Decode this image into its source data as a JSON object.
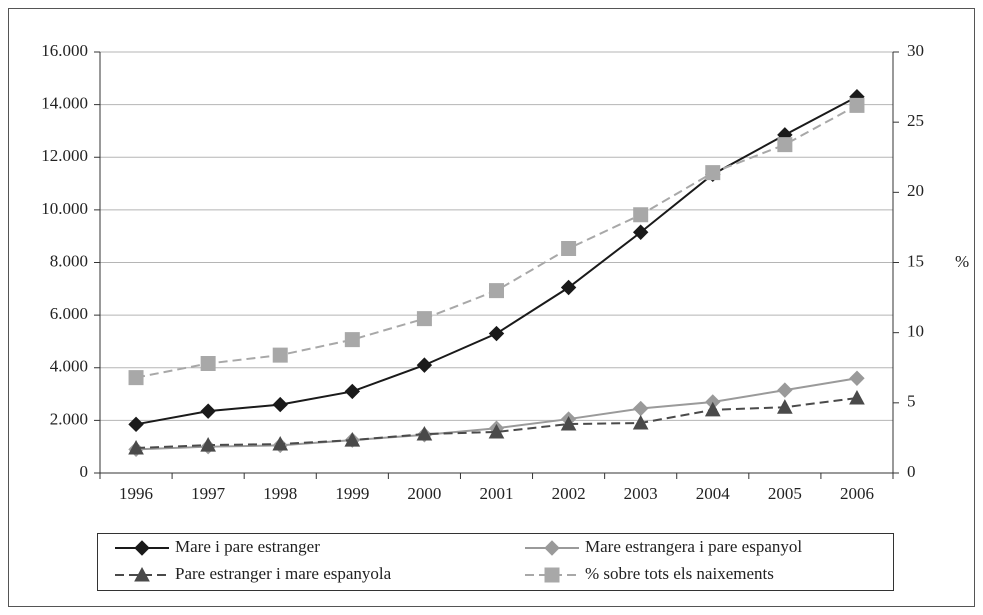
{
  "chart_data": {
    "type": "line",
    "categories": [
      "1996",
      "1997",
      "1998",
      "1999",
      "2000",
      "2001",
      "2002",
      "2003",
      "2004",
      "2005",
      "2006"
    ],
    "series": [
      {
        "name": "Mare i pare estranger",
        "color": "#1a1a1a",
        "dash": false,
        "marker": "diamond",
        "values": [
          1850,
          2350,
          2600,
          3100,
          4100,
          5300,
          7050,
          9150,
          11350,
          12850,
          14300
        ]
      },
      {
        "name": "Mare estrangera i pare espanyol",
        "color": "#9a9a9a",
        "dash": false,
        "marker": "diamond",
        "values": [
          900,
          1000,
          1050,
          1250,
          1450,
          1700,
          2050,
          2450,
          2700,
          3150,
          3600
        ]
      },
      {
        "name": "Pare estranger i mare espanyola",
        "color": "#4a4a4a",
        "dash": true,
        "marker": "triangle",
        "values": [
          950,
          1060,
          1100,
          1250,
          1480,
          1560,
          1860,
          1900,
          2400,
          2500,
          2850
        ]
      },
      {
        "name": "% sobre tots els naixements",
        "color": "#a8a8a8",
        "dash": true,
        "marker": "square",
        "axis": "y2",
        "values": [
          6.8,
          7.8,
          8.4,
          9.5,
          11.0,
          13.0,
          16.0,
          18.4,
          21.4,
          23.4,
          26.2
        ]
      }
    ],
    "ylim": [
      0,
      16000
    ],
    "yticks": [
      0,
      {
        "value": 2000,
        "label": "2.000"
      },
      {
        "value": 4000,
        "label": "4.000"
      },
      {
        "value": 6000,
        "label": "6.000"
      },
      {
        "value": 8000,
        "label": "8.000"
      },
      {
        "value": 10000,
        "label": "10.000"
      },
      {
        "value": 12000,
        "label": "12.000"
      },
      {
        "value": 14000,
        "label": "14.000"
      },
      {
        "value": 16000,
        "label": "16.000"
      }
    ],
    "y2lim": [
      0,
      30
    ],
    "y2ticks": [
      0,
      5,
      10,
      15,
      20,
      25,
      30
    ],
    "y2label": "%",
    "grid": true
  }
}
